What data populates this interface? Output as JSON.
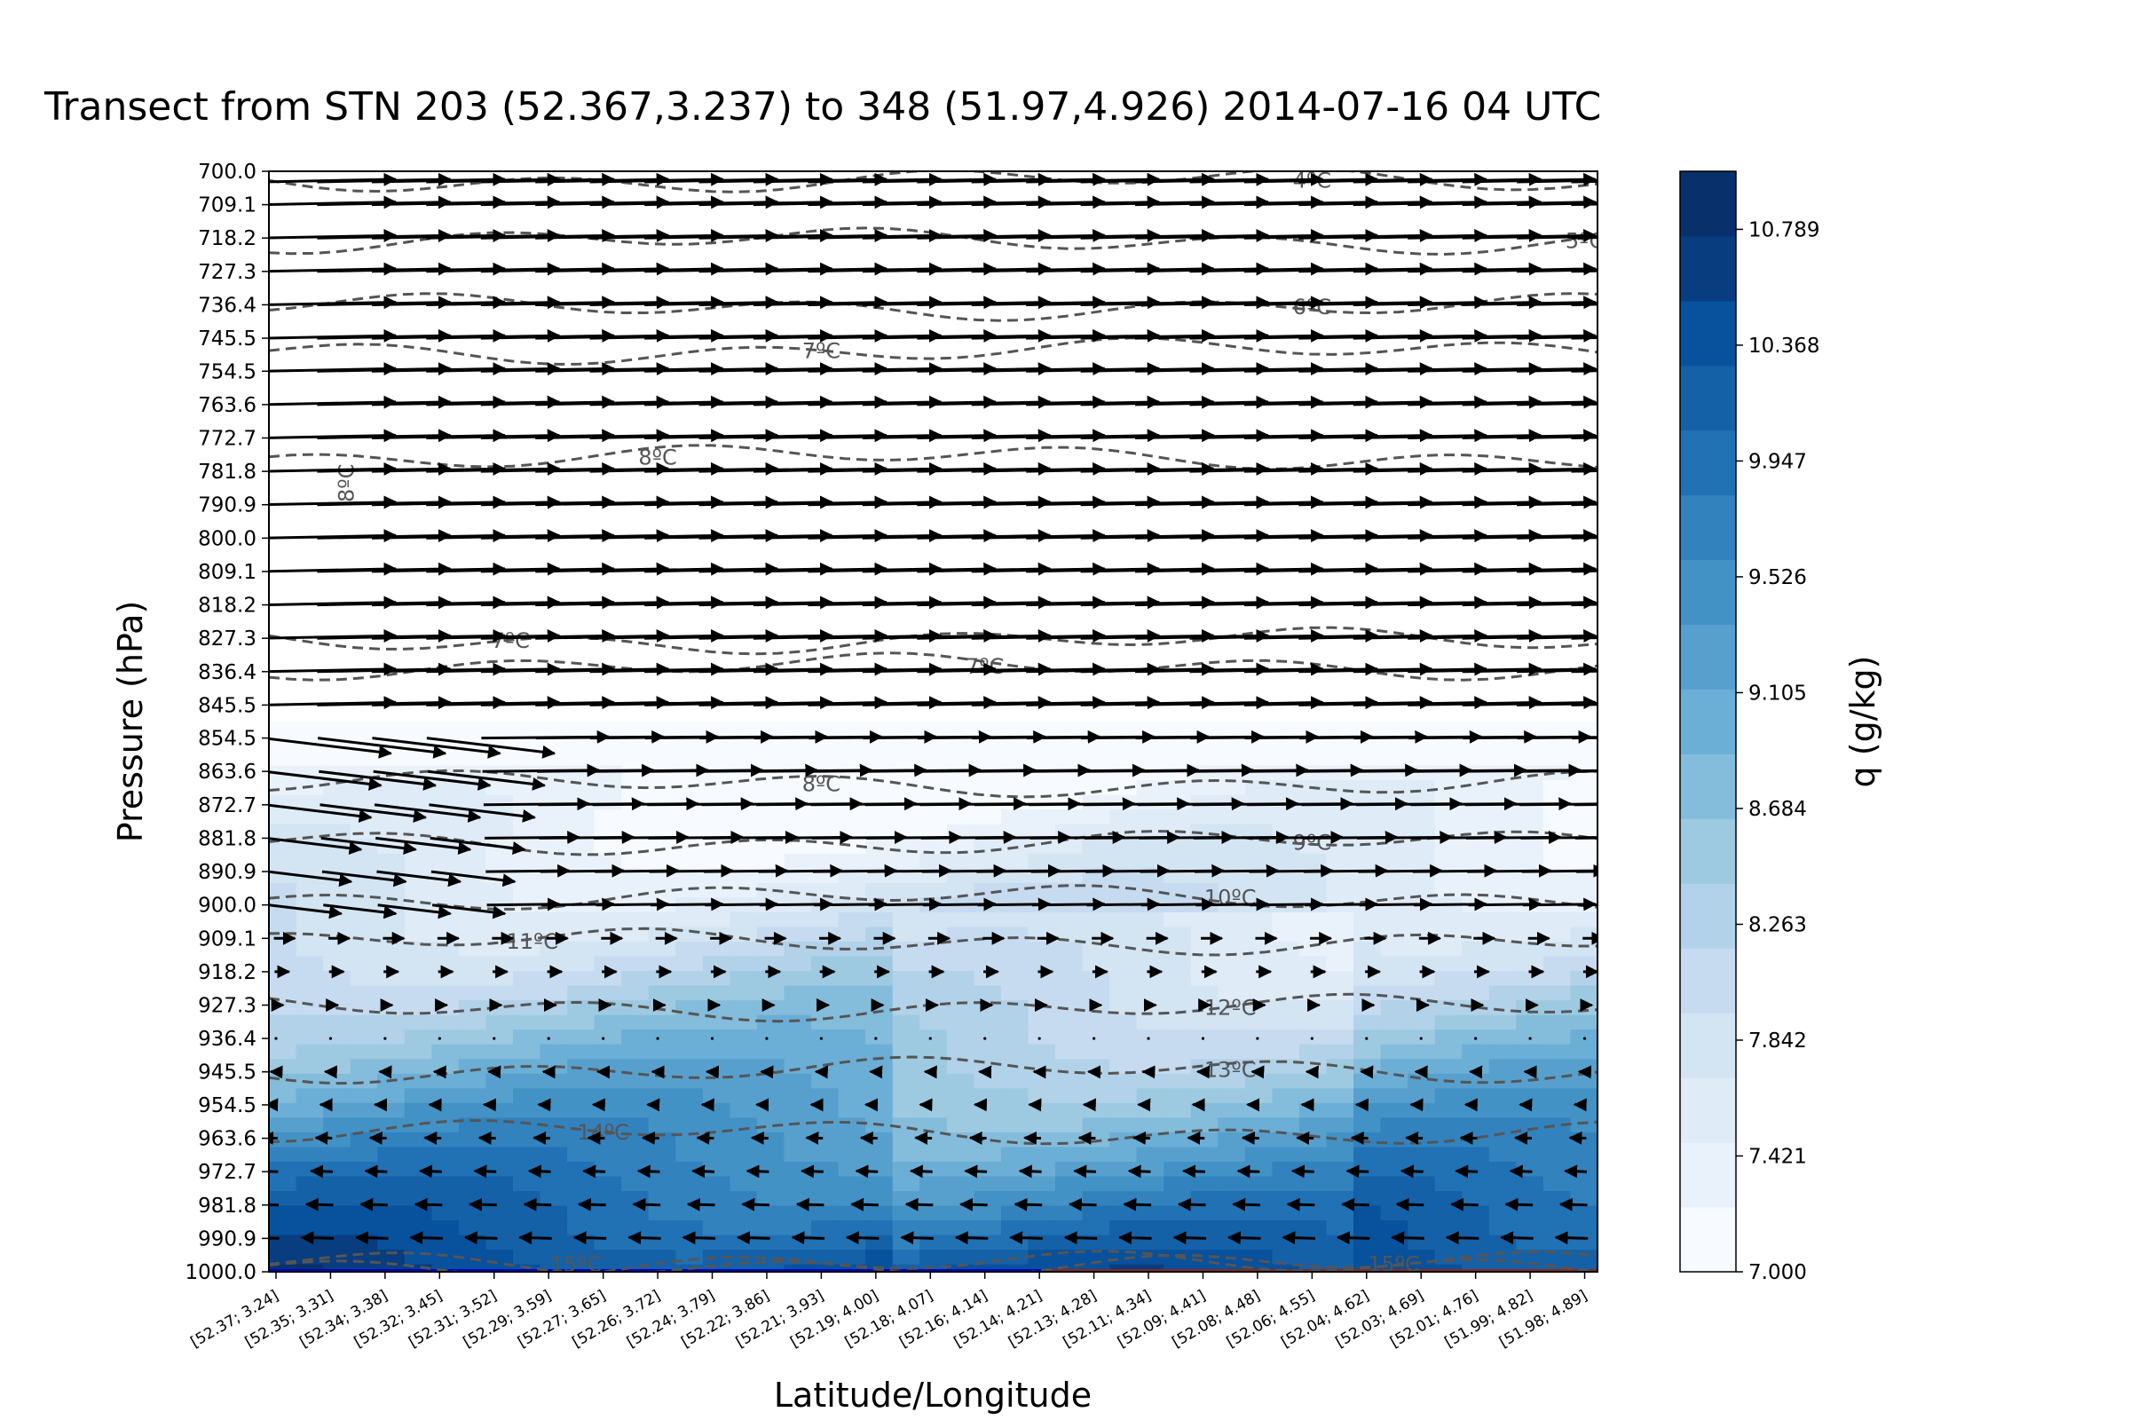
{
  "chart_data": {
    "type": "contour",
    "title": "Transect from STN 203 (52.367,3.237) to 348 (51.97,4.926) 2014-07-16 04 UTC",
    "xlabel": "Latitude/Longitude",
    "ylabel": "Pressure (hPa)",
    "colorbar_label": "q (g/kg)",
    "colorbar_ticks": [
      "7.000",
      "7.421",
      "7.842",
      "8.263",
      "8.684",
      "9.105",
      "9.526",
      "9.947",
      "10.368",
      "10.789"
    ],
    "colorbar_range": [
      7.0,
      11.0
    ],
    "y_ticks": [
      "700.0",
      "709.1",
      "718.2",
      "727.3",
      "736.4",
      "745.5",
      "754.5",
      "763.6",
      "772.7",
      "781.8",
      "790.9",
      "800.0",
      "809.1",
      "818.2",
      "827.3",
      "836.4",
      "845.5",
      "854.5",
      "863.6",
      "872.7",
      "881.8",
      "890.9",
      "900.0",
      "909.1",
      "918.2",
      "927.3",
      "936.4",
      "945.5",
      "954.5",
      "963.6",
      "972.7",
      "981.8",
      "990.9",
      "1000.0"
    ],
    "y_range": [
      700.0,
      1000.0
    ],
    "y_inverted": true,
    "x_ticks": [
      "[52.37; 3.24]",
      "[52.35; 3.31]",
      "[52.34; 3.38]",
      "[52.32; 3.45]",
      "[52.31; 3.52]",
      "[52.29; 3.59]",
      "[52.27; 3.65]",
      "[52.26; 3.72]",
      "[52.24; 3.79]",
      "[52.22; 3.86]",
      "[52.21; 3.93]",
      "[52.19; 4.00]",
      "[52.18; 4.07]",
      "[52.16; 4.14]",
      "[52.14; 4.21]",
      "[52.13; 4.28]",
      "[52.11; 4.34]",
      "[52.09; 4.41]",
      "[52.08; 4.48]",
      "[52.06; 4.55]",
      "[52.04; 4.62]",
      "[52.03; 4.69]",
      "[52.01; 4.76]",
      "[51.99; 4.82]",
      "[51.98; 4.89]"
    ],
    "temperature_contours": [
      {
        "label": "4ºC",
        "pressure": 702.5,
        "label_at": 19
      },
      {
        "label": "5ºC",
        "pressure": 719,
        "label_at": 24
      },
      {
        "label": "6ºC",
        "pressure": 737,
        "label_at": 19
      },
      {
        "label": "7ºC",
        "pressure": 749,
        "label_at": 10
      },
      {
        "label": "8ºC",
        "pressure": 778,
        "label_at": 7
      },
      {
        "label": "8ºC",
        "pressure": 785,
        "label_at": 1.2,
        "vertical": true
      },
      {
        "label": "7ºC",
        "pressure": 828,
        "label_at": 4.3
      },
      {
        "label": "7ºC",
        "pressure": 835,
        "label_at": 13
      },
      {
        "label": "8ºC",
        "pressure": 867,
        "label_at": 10
      },
      {
        "label": "9ºC",
        "pressure": 883,
        "label_at": 19
      },
      {
        "label": "10ºC",
        "pressure": 898,
        "label_at": 17.5
      },
      {
        "label": "11ºC",
        "pressure": 910,
        "label_at": 4.7
      },
      {
        "label": "12ºC",
        "pressure": 928,
        "label_at": 17.5
      },
      {
        "label": "13ºC",
        "pressure": 945,
        "label_at": 17.5
      },
      {
        "label": "14ºC",
        "pressure": 962,
        "label_at": 6
      },
      {
        "label": "15ºC",
        "pressure": 998,
        "label_at": 5.5
      },
      {
        "label": "15ºC",
        "pressure": 998,
        "label_at": 20.5
      }
    ],
    "wind": {
      "description": "westerly in upper levels, weak/easterly near surface"
    }
  }
}
